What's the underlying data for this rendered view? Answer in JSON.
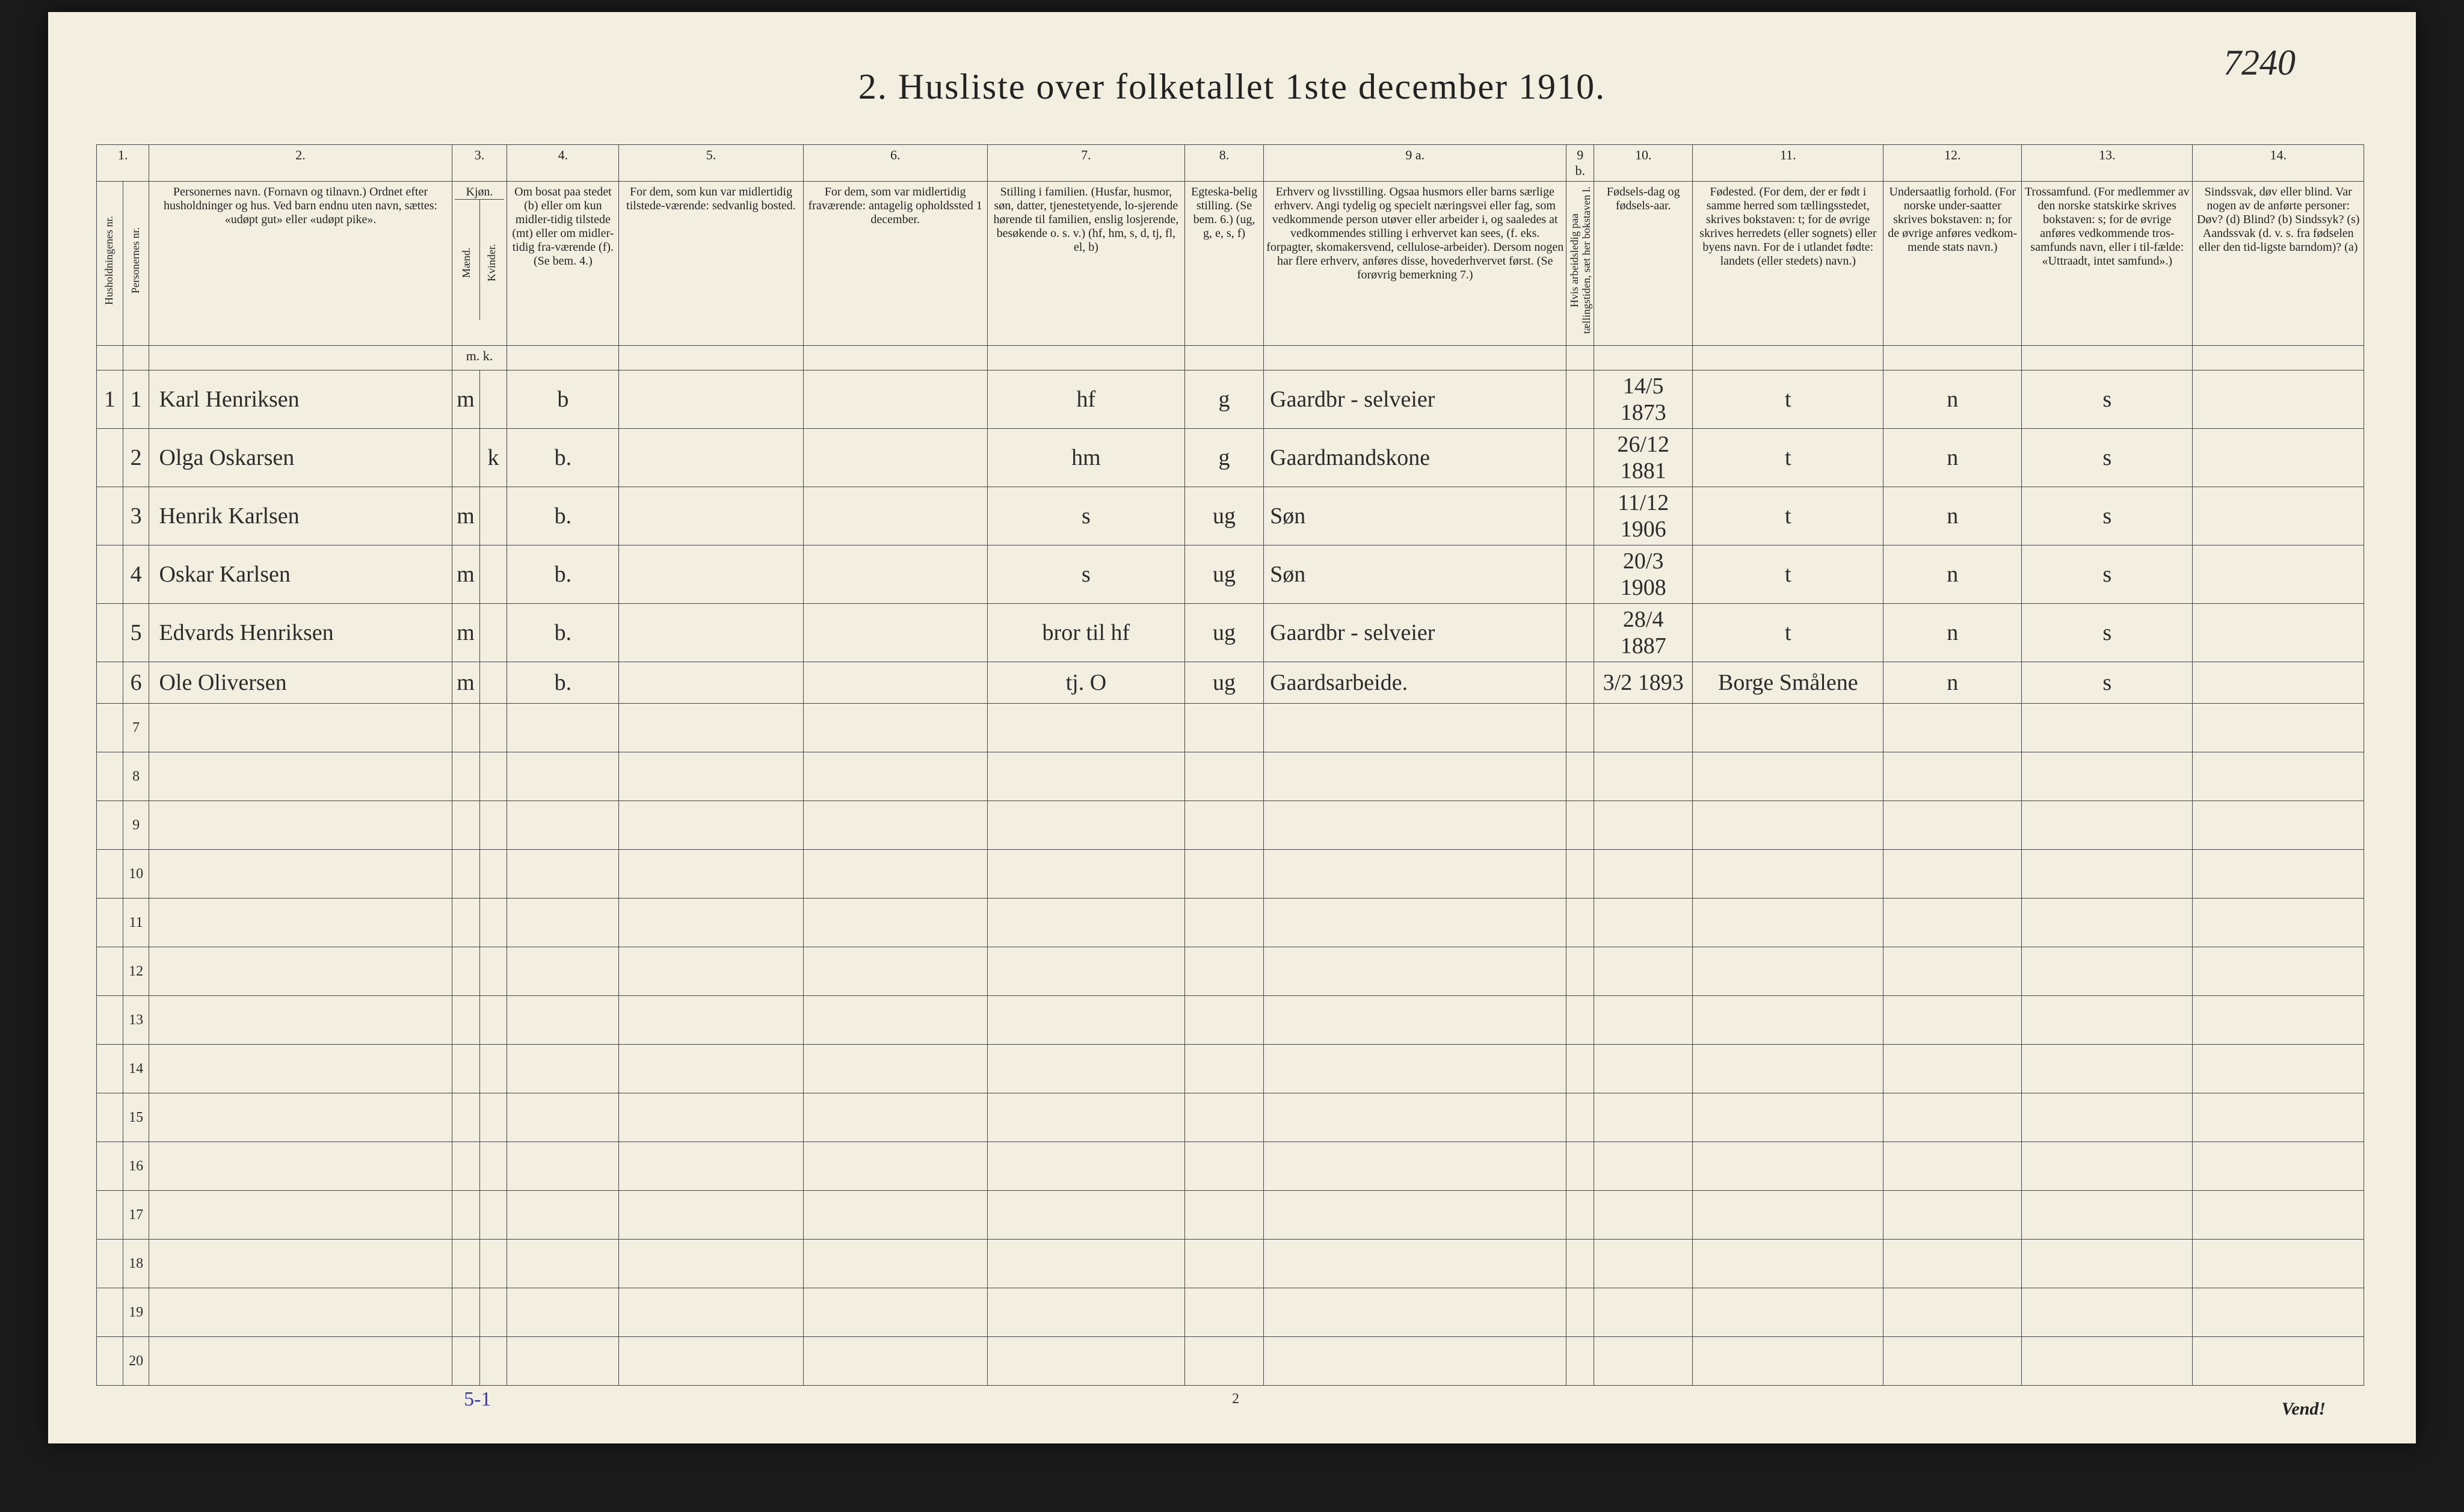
{
  "page_number_handwritten": "7240",
  "title": "2.  Husliste over folketallet 1ste december 1910.",
  "bottom_center": "2",
  "vend": "Vend!",
  "footer_note": "5-1",
  "colnums": [
    "1.",
    "2.",
    "3.",
    "4.",
    "5.",
    "6.",
    "7.",
    "8.",
    "9 a.",
    "9 b.",
    "10.",
    "11.",
    "12.",
    "13.",
    "14."
  ],
  "headers": {
    "c1a": "Husholdningenes nr.",
    "c1b": "Personernes nr.",
    "c2": "Personernes navn.\n(Fornavn og tilnavn.)\nOrdnet efter husholdninger og hus.\nVed barn endnu uten navn, sættes: «udøpt gut» eller «udøpt pike».",
    "c3": "Kjøn.",
    "c3a": "Mænd.",
    "c3b": "Kvinder.",
    "c4": "Om bosat paa stedet (b) eller om kun midler-tidig tilstede (mt) eller om midler-tidig fra-værende (f).\n(Se bem. 4.)",
    "c5": "For dem, som kun var midlertidig tilstede-værende:\nsedvanlig bosted.",
    "c6": "For dem, som var midlertidig fraværende:\nantagelig opholdssted 1 december.",
    "c7": "Stilling i familien.\n(Husfar, husmor, søn, datter, tjenestetyende, lo-sjerende hørende til familien, enslig losjerende, besøkende o. s. v.)\n(hf, hm, s, d, tj, fl, el, b)",
    "c8": "Egteska-belig stilling.\n(Se bem. 6.)\n(ug, g, e, s, f)",
    "c9a": "Erhverv og livsstilling.\nOgsaa husmors eller barns særlige erhverv.\nAngi tydelig og specielt næringsvei eller fag, som vedkommende person utøver eller arbeider i, og saaledes at vedkommendes stilling i erhvervet kan sees, (f. eks. forpagter, skomakersvend, cellulose-arbeider). Dersom nogen har flere erhverv, anføres disse, hovederhvervet først.\n(Se forøvrig bemerkning 7.)",
    "c9b": "Hvis arbeidsledig paa tællingstiden, sæt her bokstaven l.",
    "c10": "Fødsels-dag og fødsels-aar.",
    "c11": "Fødested.\n(For dem, der er født i samme herred som tællingsstedet, skrives bokstaven: t; for de øvrige skrives herredets (eller sognets) eller byens navn. For de i utlandet fødte: landets (eller stedets) navn.)",
    "c12": "Undersaatlig forhold.\n(For norske under-saatter skrives bokstaven: n; for de øvrige anføres vedkom-mende stats navn.)",
    "c13": "Trossamfund.\n(For medlemmer av den norske statskirke skrives bokstaven: s; for de øvrige anføres vedkommende tros-samfunds navn, eller i til-fælde: «Uttraadt, intet samfund».)",
    "c14": "Sindssvak, døv eller blind.\nVar nogen av de anførte personer:\nDøv?       (d)\nBlind?     (b)\nSindssyk?  (s)\nAandssvak (d. v. s. fra fødselen eller den tid-ligste barndom)? (a)",
    "mk": "m. k."
  },
  "rows": [
    {
      "hh": "1",
      "pn": "1",
      "name": "Karl Henriksen",
      "m": "m",
      "k": "",
      "b": "b",
      "c5": "",
      "c6": "",
      "c7": "hf",
      "c8": "g",
      "c9a": "Gaardbr - selveier",
      "c9b": "",
      "c10": "14/5 1873",
      "c11": "t",
      "c12": "n",
      "c13": "s",
      "c14": ""
    },
    {
      "hh": "",
      "pn": "2",
      "name": "Olga Oskarsen",
      "m": "",
      "k": "k",
      "b": "b.",
      "c5": "",
      "c6": "",
      "c7": "hm",
      "c8": "g",
      "c9a": "Gaardmandskone",
      "c9b": "",
      "c10": "26/12 1881",
      "c11": "t",
      "c12": "n",
      "c13": "s",
      "c14": ""
    },
    {
      "hh": "",
      "pn": "3",
      "name": "Henrik Karlsen",
      "m": "m",
      "k": "",
      "b": "b.",
      "c5": "",
      "c6": "",
      "c7": "s",
      "c8": "ug",
      "c9a": "Søn",
      "c9b": "",
      "c10": "11/12 1906",
      "c11": "t",
      "c12": "n",
      "c13": "s",
      "c14": ""
    },
    {
      "hh": "",
      "pn": "4",
      "name": "Oskar Karlsen",
      "m": "m",
      "k": "",
      "b": "b.",
      "c5": "",
      "c6": "",
      "c7": "s",
      "c8": "ug",
      "c9a": "Søn",
      "c9b": "",
      "c10": "20/3 1908",
      "c11": "t",
      "c12": "n",
      "c13": "s",
      "c14": ""
    },
    {
      "hh": "",
      "pn": "5",
      "name": "Edvards Henriksen",
      "m": "m",
      "k": "",
      "b": "b.",
      "c5": "",
      "c6": "",
      "c7": "bror til hf",
      "c8": "ug",
      "c9a": "Gaardbr - selveier",
      "c9b": "",
      "c10": "28/4 1887",
      "c11": "t",
      "c12": "n",
      "c13": "s",
      "c14": ""
    },
    {
      "hh": "",
      "pn": "6",
      "name": "Ole Oliversen",
      "m": "m",
      "k": "",
      "b": "b.",
      "c5": "",
      "c6": "",
      "c7": "tj.   O",
      "c8": "ug",
      "c9a": "Gaardsarbeide.",
      "c9b": "",
      "c10": "3/2 1893",
      "c11": "Borge Smålene",
      "c12": "n",
      "c13": "s",
      "c14": ""
    }
  ],
  "empty_row_labels": [
    "7",
    "8",
    "9",
    "10",
    "11",
    "12",
    "13",
    "14",
    "15",
    "16",
    "17",
    "18",
    "19",
    "20"
  ],
  "colors": {
    "paper": "#f3efe0",
    "border": "#444444",
    "ink": "#2b2b2b",
    "blue_ink": "#3a3aa0",
    "background": "#1a1a1a"
  },
  "fontsizes": {
    "title": 60,
    "header": 20,
    "data": 38
  }
}
